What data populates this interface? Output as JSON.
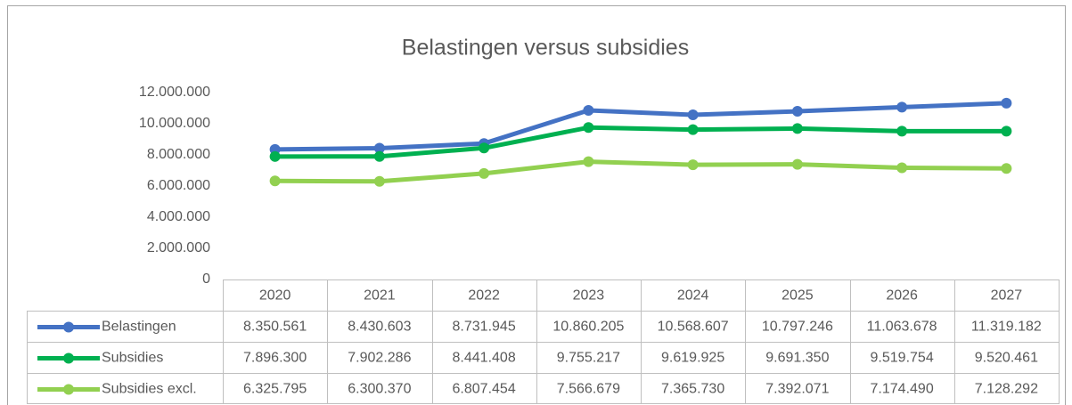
{
  "chart_data": {
    "type": "line",
    "title": "Belastingen versus subsidies",
    "categories": [
      "2020",
      "2021",
      "2022",
      "2023",
      "2024",
      "2025",
      "2026",
      "2027"
    ],
    "series": [
      {
        "name": "Belastingen",
        "color": "#4472c4",
        "values": [
          8350561,
          8430603,
          8731945,
          10860205,
          10568607,
          10797246,
          11063678,
          11319182
        ],
        "value_labels": [
          "8.350.561",
          "8.430.603",
          "8.731.945",
          "10.860.205",
          "10.568.607",
          "10.797.246",
          "11.063.678",
          "11.319.182"
        ]
      },
      {
        "name": "Subsidies",
        "color": "#00b050",
        "values": [
          7896300,
          7902286,
          8441408,
          9755217,
          9619925,
          9691350,
          9519754,
          9520461
        ],
        "value_labels": [
          "7.896.300",
          "7.902.286",
          "8.441.408",
          "9.755.217",
          "9.619.925",
          "9.691.350",
          "9.519.754",
          "9.520.461"
        ]
      },
      {
        "name": "Subsidies excl.",
        "color": "#92d050",
        "values": [
          6325795,
          6300370,
          6807454,
          7566679,
          7365730,
          7392071,
          7174490,
          7128292
        ],
        "value_labels": [
          "6.325.795",
          "6.300.370",
          "6.807.454",
          "7.566.679",
          "7.365.730",
          "7.392.071",
          "7.174.490",
          "7.128.292"
        ]
      }
    ],
    "ylim": [
      0,
      12000000
    ],
    "yticks": [
      0,
      {
        "value": 2000000,
        "label": "2.000.000"
      },
      {
        "value": 4000000,
        "label": "4.000.000"
      },
      {
        "value": 6000000,
        "label": "6.000.000"
      },
      {
        "value": 8000000,
        "label": "8.000.000"
      },
      {
        "value": 10000000,
        "label": "10.000.000"
      },
      {
        "value": 12000000,
        "label": "12.000.000"
      }
    ],
    "grid": false
  }
}
